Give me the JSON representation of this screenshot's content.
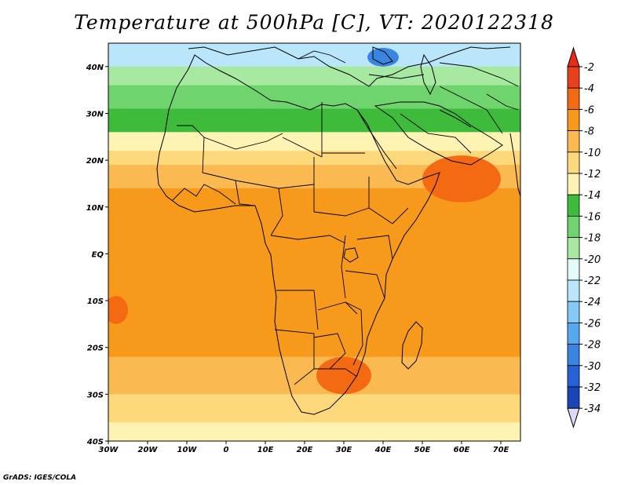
{
  "title": "Temperature at 500hPa [C], VT: 2020122318",
  "credit": "GrADS: IGES/COLA",
  "map": {
    "projection": "lat-lon",
    "lon_range": [
      -30,
      75
    ],
    "lat_range": [
      -40,
      45
    ],
    "x_ticks": [
      "30W",
      "20W",
      "10W",
      "0",
      "10E",
      "20E",
      "30E",
      "40E",
      "50E",
      "60E",
      "70E"
    ],
    "y_ticks": [
      "40N",
      "30N",
      "20N",
      "10N",
      "EQ",
      "10S",
      "20S",
      "30S",
      "40S"
    ]
  },
  "colorbar": {
    "labels": [
      "-2",
      "-4",
      "-6",
      "-8",
      "-10",
      "-12",
      "-14",
      "-16",
      "-18",
      "-20",
      "-22",
      "-24",
      "-26",
      "-28",
      "-30",
      "-32",
      "-34"
    ],
    "colors": [
      "#e8401a",
      "#f46a12",
      "#f79a1c",
      "#fbb951",
      "#fdd97c",
      "#fdf4b4",
      "#3ebb3a",
      "#6fd46e",
      "#a8e9a1",
      "#e3fbfa",
      "#b9e6fb",
      "#85c9f7",
      "#57a9ef",
      "#3a84e2",
      "#2562d6",
      "#1945b8",
      "#0b1a78"
    ],
    "top_arrow_color": "#e82a1a",
    "bottom_arrow_color": "#e0d8f7"
  },
  "field": {
    "unit": "C",
    "bands": [
      {
        "lat_max": 45,
        "lat_min": 40,
        "value": -22
      },
      {
        "lat_max": 40,
        "lat_min": 36,
        "value": -18
      },
      {
        "lat_max": 36,
        "lat_min": 31,
        "value": -16
      },
      {
        "lat_max": 31,
        "lat_min": 26,
        "value": -14
      },
      {
        "lat_max": 26,
        "lat_min": 22,
        "value": -12
      },
      {
        "lat_max": 22,
        "lat_min": 19,
        "value": -10
      },
      {
        "lat_max": 19,
        "lat_min": 14,
        "value": -8
      },
      {
        "lat_max": 14,
        "lat_min": -22,
        "value": -6
      },
      {
        "lat_max": -22,
        "lat_min": -30,
        "value": -8
      },
      {
        "lat_max": -30,
        "lat_min": -36,
        "value": -10
      },
      {
        "lat_max": -36,
        "lat_min": -40,
        "value": -12
      }
    ],
    "features": [
      {
        "lon": 30,
        "lat": -26,
        "rx": 7,
        "ry": 4,
        "value": -4
      },
      {
        "lon": 60,
        "lat": 16,
        "rx": 10,
        "ry": 5,
        "value": -4
      },
      {
        "lon": -28,
        "lat": -12,
        "rx": 3,
        "ry": 3,
        "value": -4
      },
      {
        "lon": 40,
        "lat": 42,
        "rx": 4,
        "ry": 2,
        "value": -28
      }
    ]
  }
}
